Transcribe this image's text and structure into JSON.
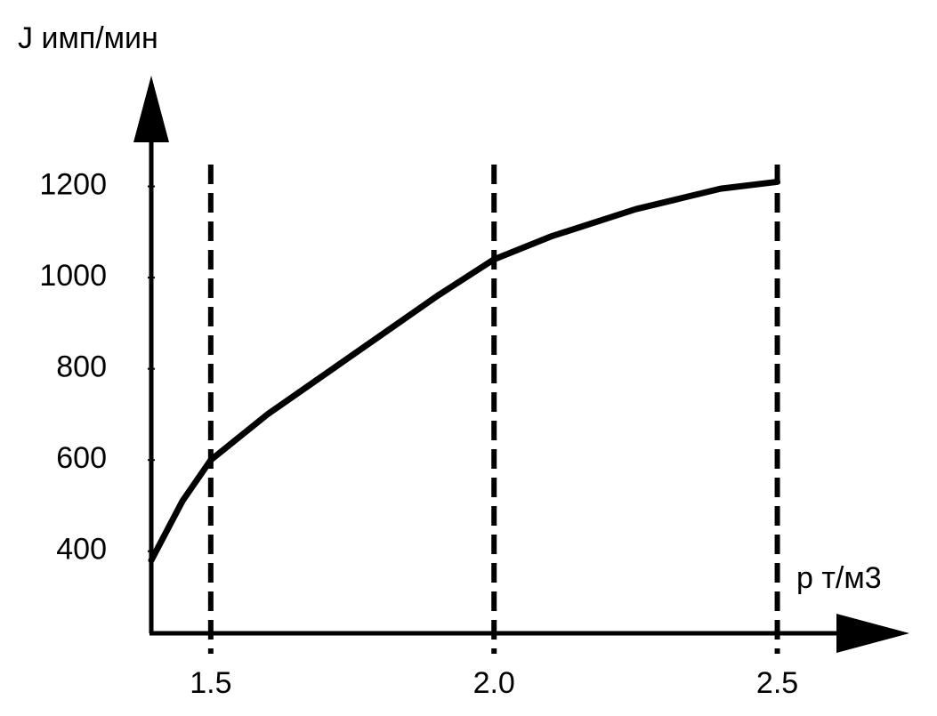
{
  "chart_data": {
    "type": "line",
    "y_label": "J имп/мин",
    "x_label": "p т/м3",
    "x": [
      1.395,
      1.45,
      1.5,
      1.6,
      1.75,
      1.9,
      2.0,
      2.1,
      2.25,
      2.4,
      2.5
    ],
    "values": [
      380,
      510,
      600,
      700,
      830,
      960,
      1040,
      1090,
      1150,
      1195,
      1210
    ],
    "color": "#000000",
    "xlim": [
      1.395,
      2.73
    ],
    "ylim": [
      220,
      1443
    ],
    "xticks": [
      1.5,
      {
        "value": 2,
        "label": "2.0"
      },
      2.5
    ],
    "yticks": [
      400,
      600,
      800,
      1000,
      1200
    ],
    "grid": true
  }
}
